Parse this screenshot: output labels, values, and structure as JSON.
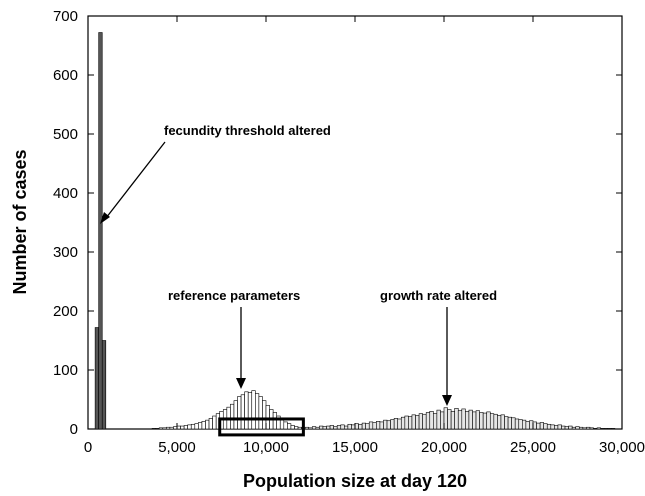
{
  "chart_data": {
    "type": "bar",
    "xlabel": "Population size at day 120",
    "ylabel": "Number of cases",
    "xlim": [
      0,
      30000
    ],
    "ylim": [
      0,
      700
    ],
    "bin_width": 200,
    "x_ticks": [
      0,
      5000,
      10000,
      15000,
      20000,
      25000,
      30000
    ],
    "x_tick_labels": [
      "0",
      "5,000",
      "10,000",
      "15,000",
      "20,000",
      "25,000",
      "30,000"
    ],
    "y_ticks": [
      0,
      100,
      200,
      300,
      400,
      500,
      600,
      700
    ],
    "y_tick_labels": [
      "0",
      "100",
      "200",
      "300",
      "400",
      "500",
      "600",
      "700"
    ],
    "grid": false,
    "series": [
      {
        "fill": "#555555",
        "x": [
          400,
          600,
          800
        ],
        "values": [
          172,
          672,
          150
        ]
      },
      {
        "fill": "#ffffff",
        "x": [
          3600,
          3800,
          4000,
          4200,
          4400,
          4600,
          4800,
          5000,
          5200,
          5400,
          5600,
          5800,
          6000,
          6200,
          6400,
          6600,
          6800,
          7000,
          7200,
          7400,
          7600,
          7800,
          8000,
          8200,
          8400,
          8600,
          8800,
          9000,
          9200,
          9400,
          9600,
          9800,
          10000,
          10200,
          10400,
          10600,
          10800,
          11000,
          11200,
          11400,
          11600,
          11800,
          12000
        ],
        "values": [
          1,
          1,
          2,
          2,
          3,
          3,
          4,
          5,
          5,
          6,
          7,
          8,
          9,
          11,
          13,
          15,
          18,
          22,
          26,
          30,
          33,
          37,
          42,
          48,
          55,
          58,
          63,
          62,
          65,
          60,
          55,
          48,
          40,
          33,
          28,
          22,
          17,
          12,
          9,
          6,
          4,
          3,
          2
        ]
      },
      {
        "fill": "#e6e6e6",
        "x": [
          12000,
          12200,
          12400,
          12600,
          12800,
          13000,
          13200,
          13400,
          13600,
          13800,
          14000,
          14200,
          14400,
          14600,
          14800,
          15000,
          15200,
          15400,
          15600,
          15800,
          16000,
          16200,
          16400,
          16600,
          16800,
          17000,
          17200,
          17400,
          17600,
          17800,
          18000,
          18200,
          18400,
          18600,
          18800,
          19000,
          19200,
          19400,
          19600,
          19800,
          20000,
          20200,
          20400,
          20600,
          20800,
          21000,
          21200,
          21400,
          21600,
          21800,
          22000,
          22200,
          22400,
          22600,
          22800,
          23000,
          23200,
          23400,
          23600,
          23800,
          24000,
          24200,
          24400,
          24600,
          24800,
          25000,
          25200,
          25400,
          25600,
          25800,
          26000,
          26200,
          26400,
          26600,
          26800,
          27000,
          27200,
          27400,
          27600,
          27800,
          28000,
          28200,
          28400,
          28600,
          28800,
          29000,
          29200,
          29400
        ],
        "values": [
          2,
          3,
          2,
          4,
          3,
          5,
          4,
          5,
          6,
          4,
          6,
          7,
          5,
          8,
          7,
          9,
          8,
          10,
          9,
          12,
          11,
          13,
          12,
          15,
          14,
          16,
          18,
          17,
          20,
          22,
          21,
          24,
          23,
          26,
          25,
          28,
          30,
          26,
          32,
          29,
          36,
          33,
          30,
          35,
          31,
          34,
          30,
          32,
          29,
          31,
          28,
          27,
          29,
          26,
          25,
          23,
          24,
          21,
          20,
          19,
          17,
          16,
          15,
          13,
          14,
          12,
          10,
          11,
          9,
          8,
          7,
          6,
          7,
          5,
          4,
          5,
          3,
          4,
          3,
          2,
          3,
          2,
          1,
          2,
          1,
          1,
          1,
          1
        ]
      }
    ],
    "annotations": [
      {
        "text": "fecundity threshold altered",
        "arrow_to": [
          650,
          350
        ]
      },
      {
        "text": "reference parameters",
        "arrow_to": [
          8700,
          65
        ]
      },
      {
        "text": "growth rate altered",
        "arrow_to": [
          20100,
          40
        ]
      }
    ],
    "highlight_box": {
      "x": [
        7400,
        12100
      ],
      "y": [
        -10,
        17
      ]
    }
  }
}
